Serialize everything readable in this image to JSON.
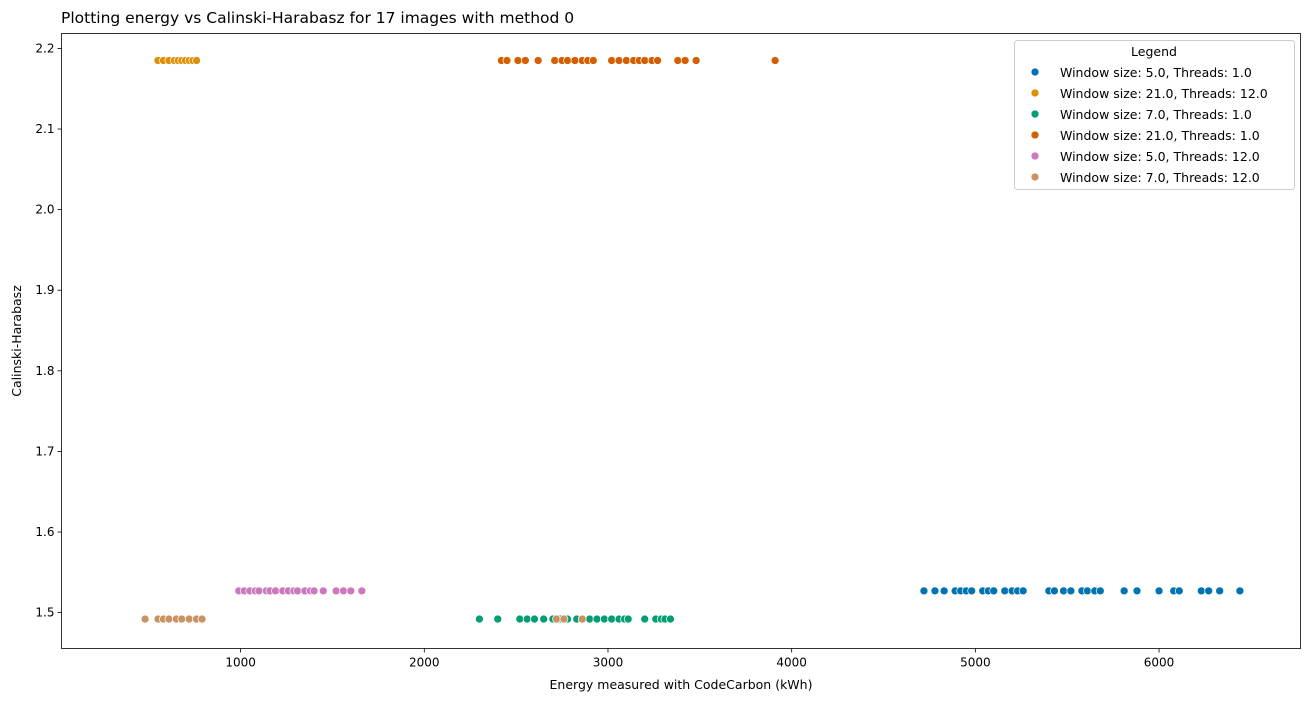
{
  "chart_data": {
    "type": "scatter",
    "title": "Plotting energy vs Calinski-Harabasz for 17 images with method 0",
    "xlabel": "Energy measured with CodeCarbon (kWh)",
    "ylabel": "Calinski-Harabasz",
    "xlim": [
      25,
      6770
    ],
    "ylim": [
      1.4555,
      2.2185
    ],
    "xticks": [
      1000,
      2000,
      3000,
      4000,
      5000,
      6000
    ],
    "yticks": [
      1.5,
      1.6,
      1.7,
      1.8,
      1.9,
      2.0,
      2.1,
      2.2
    ],
    "ytick_labels": [
      "1.5",
      "1.6",
      "1.7",
      "1.8",
      "1.9",
      "2.0",
      "2.1",
      "2.2"
    ],
    "grid": false,
    "legend": {
      "title": "Legend",
      "position": "top-right"
    },
    "series": [
      {
        "name": "Window size: 5.0, Threads: 1.0",
        "color": "#0173b2",
        "x": [
          4720,
          4780,
          4830,
          4890,
          4920,
          4950,
          4980,
          5040,
          5070,
          5100,
          5160,
          5200,
          5230,
          5260,
          5400,
          5430,
          5480,
          5520,
          5580,
          5610,
          5650,
          5680,
          5810,
          5880,
          6000,
          6080,
          6110,
          6230,
          6270,
          6330,
          6440
        ],
        "y": 1.527
      },
      {
        "name": "Window size: 21.0, Threads: 12.0",
        "color": "#de8f05",
        "x": [
          550,
          580,
          610,
          640,
          660,
          680,
          700,
          720,
          740,
          760
        ],
        "y": 2.185
      },
      {
        "name": "Window size: 7.0, Threads: 1.0",
        "color": "#029e73",
        "x": [
          2300,
          2400,
          2520,
          2560,
          2600,
          2650,
          2700,
          2740,
          2780,
          2830,
          2860,
          2900,
          2940,
          2980,
          3020,
          3060,
          3090,
          3110,
          3200,
          3260,
          3290,
          3310,
          3340
        ],
        "y": 1.492
      },
      {
        "name": "Window size: 21.0, Threads: 1.0",
        "color": "#d55e00",
        "x": [
          2420,
          2450,
          2510,
          2550,
          2620,
          2710,
          2750,
          2780,
          2820,
          2860,
          2890,
          2920,
          3020,
          3060,
          3100,
          3140,
          3170,
          3200,
          3240,
          3270,
          3380,
          3420,
          3480,
          3910
        ],
        "y": 2.185
      },
      {
        "name": "Window size: 5.0, Threads: 12.0",
        "color": "#cc78bc",
        "x": [
          990,
          1020,
          1050,
          1080,
          1100,
          1140,
          1160,
          1190,
          1230,
          1260,
          1290,
          1310,
          1350,
          1380,
          1400,
          1450,
          1520,
          1560,
          1600,
          1660
        ],
        "y": 1.527
      },
      {
        "name": "Window size: 7.0, Threads: 12.0",
        "color": "#ca9161",
        "x": [
          480,
          550,
          580,
          610,
          650,
          680,
          720,
          760,
          790,
          2720,
          2760,
          2860
        ],
        "y": 1.492
      }
    ]
  }
}
